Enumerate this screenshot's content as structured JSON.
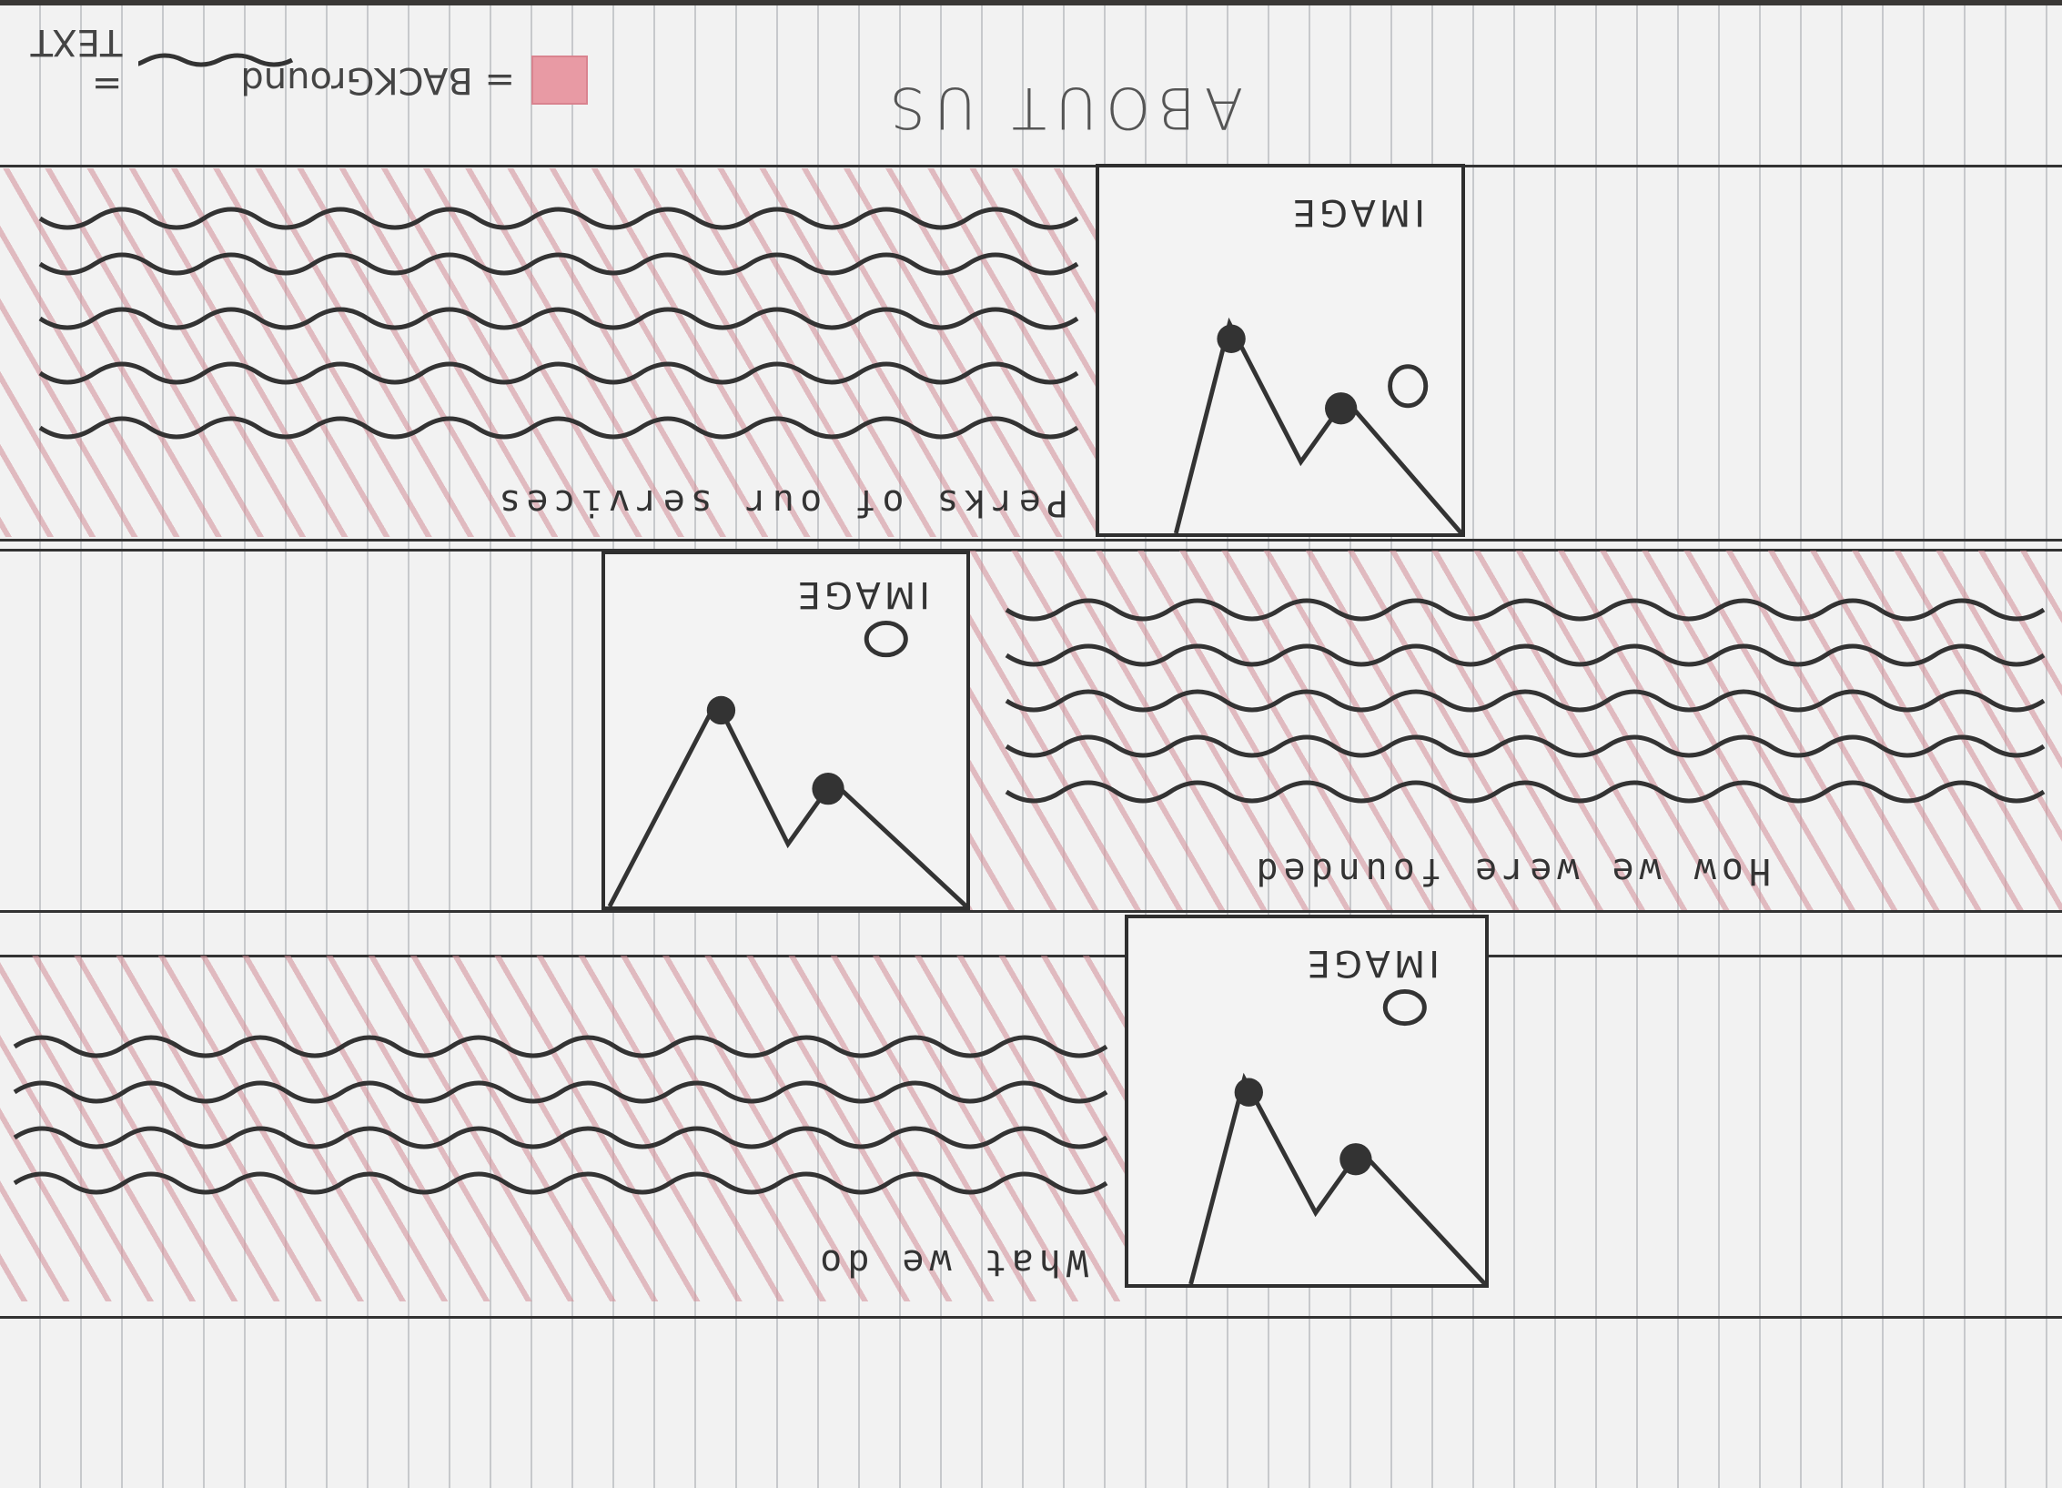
{
  "page": {
    "title": "ABOUT US"
  },
  "sections": [
    {
      "heading": "What we do",
      "image_label": "IMAGE"
    },
    {
      "heading": "How we were founded",
      "image_label": "IMAGE"
    },
    {
      "heading": "Perks of our services",
      "image_label": "IMAGE"
    }
  ],
  "legend": {
    "text_sample_label": "= TEXT",
    "background_label": "= BACKGround"
  },
  "colors": {
    "ink": "#333333",
    "background_hatch": "#d28c96",
    "paper": "#f2f2f2",
    "rule_lines": "#c7c9cc"
  },
  "icons": {
    "image_placeholder": "mountain-sun-icon",
    "text_line": "squiggle-line-icon"
  }
}
